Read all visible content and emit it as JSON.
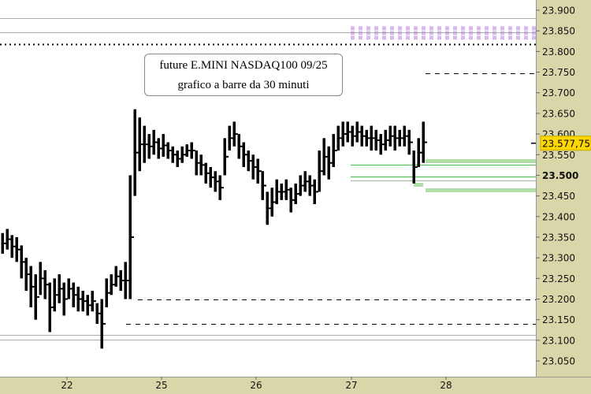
{
  "chart_data": {
    "type": "bar",
    "style": "ohlc-high-low",
    "annotation": [
      "future E.MINI NASDAQ100 09/25",
      "grafico a barre da 30 minuti"
    ],
    "ylim": [
      23030,
      23920
    ],
    "y_ticks": [
      "23.900",
      "23.850",
      "23.800",
      "23.750",
      "23.700",
      "23.650",
      "23.600",
      "23.550",
      "23.500",
      "23.450",
      "23.400",
      "23.350",
      "23.300",
      "23.250",
      "23.200",
      "23.150",
      "23.100",
      "23.050"
    ],
    "y_tick_values": [
      23900,
      23850,
      23800,
      23750,
      23700,
      23650,
      23600,
      23550,
      23500,
      23450,
      23400,
      23350,
      23300,
      23250,
      23200,
      23150,
      23100,
      23050
    ],
    "x_ticks": [
      "22",
      "25",
      "26",
      "27",
      "28"
    ],
    "last_price_label": "23.577,75",
    "last_price": 23577.75,
    "bars": [
      [
        23360,
        23310
      ],
      [
        23370,
        23320
      ],
      [
        23355,
        23300
      ],
      [
        23350,
        23290
      ],
      [
        23330,
        23250
      ],
      [
        23300,
        23220
      ],
      [
        23280,
        23180
      ],
      [
        23260,
        23150
      ],
      [
        23290,
        23210
      ],
      [
        23270,
        23200
      ],
      [
        23240,
        23120
      ],
      [
        23250,
        23170
      ],
      [
        23260,
        23190
      ],
      [
        23240,
        23160
      ],
      [
        23250,
        23200
      ],
      [
        23240,
        23180
      ],
      [
        23230,
        23170
      ],
      [
        23220,
        23170
      ],
      [
        23210,
        23160
      ],
      [
        23220,
        23170
      ],
      [
        23190,
        23140
      ],
      [
        23200,
        23080
      ],
      [
        23250,
        23180
      ],
      [
        23260,
        23210
      ],
      [
        23280,
        23230
      ],
      [
        23270,
        23220
      ],
      [
        23290,
        23200
      ],
      [
        23500,
        23200
      ],
      [
        23660,
        23450
      ],
      [
        23640,
        23510
      ],
      [
        23620,
        23530
      ],
      [
        23600,
        23540
      ],
      [
        23610,
        23550
      ],
      [
        23590,
        23540
      ],
      [
        23600,
        23545
      ],
      [
        23580,
        23540
      ],
      [
        23570,
        23530
      ],
      [
        23560,
        23520
      ],
      [
        23570,
        23530
      ],
      [
        23575,
        23545
      ],
      [
        23580,
        23540
      ],
      [
        23560,
        23500
      ],
      [
        23550,
        23500
      ],
      [
        23530,
        23480
      ],
      [
        23520,
        23470
      ],
      [
        23510,
        23460
      ],
      [
        23500,
        23440
      ],
      [
        23590,
        23500
      ],
      [
        23620,
        23560
      ],
      [
        23630,
        23570
      ],
      [
        23600,
        23540
      ],
      [
        23580,
        23520
      ],
      [
        23560,
        23510
      ],
      [
        23550,
        23490
      ],
      [
        23540,
        23480
      ],
      [
        23510,
        23440
      ],
      [
        23460,
        23380
      ],
      [
        23470,
        23400
      ],
      [
        23490,
        23430
      ],
      [
        23480,
        23440
      ],
      [
        23490,
        23440
      ],
      [
        23470,
        23410
      ],
      [
        23480,
        23430
      ],
      [
        23500,
        23450
      ],
      [
        23510,
        23460
      ],
      [
        23500,
        23450
      ],
      [
        23490,
        23430
      ],
      [
        23560,
        23460
      ],
      [
        23590,
        23500
      ],
      [
        23570,
        23490
      ],
      [
        23600,
        23520
      ],
      [
        23620,
        23560
      ],
      [
        23630,
        23570
      ],
      [
        23630,
        23580
      ],
      [
        23620,
        23570
      ],
      [
        23630,
        23580
      ],
      [
        23620,
        23570
      ],
      [
        23610,
        23570
      ],
      [
        23620,
        23560
      ],
      [
        23610,
        23560
      ],
      [
        23600,
        23550
      ],
      [
        23610,
        23560
      ],
      [
        23620,
        23570
      ],
      [
        23620,
        23560
      ],
      [
        23610,
        23570
      ],
      [
        23620,
        23570
      ],
      [
        23610,
        23550
      ],
      [
        23560,
        23480
      ],
      [
        23590,
        23520
      ],
      [
        23630,
        23530
      ]
    ],
    "levels": [
      {
        "price": 23880,
        "style": "solid",
        "color": "#aaaaaa"
      },
      {
        "price": 23846,
        "style": "solid",
        "color": "#aaaaaa"
      },
      {
        "price": 23818,
        "style": "dotted",
        "color": "#000000"
      },
      {
        "price": 23747,
        "style": "dashed",
        "color": "#000000"
      },
      {
        "price": 23535,
        "style": "band",
        "color": "#b0e0a8"
      },
      {
        "price": 23526,
        "style": "solid",
        "color": "#44bb44"
      },
      {
        "price": 23497,
        "style": "solid",
        "color": "#44bb44"
      },
      {
        "price": 23487,
        "style": "solid",
        "color": "#aaaaaa"
      },
      {
        "price": 23478,
        "style": "band",
        "color": "#b0e0a8"
      },
      {
        "price": 23465,
        "style": "band",
        "color": "#b0e0a8"
      },
      {
        "price": 23199,
        "style": "dashed",
        "color": "#000000"
      },
      {
        "price": 23140,
        "style": "dashed",
        "color": "#000000"
      },
      {
        "price": 23113,
        "style": "solid",
        "color": "#aaaaaa"
      },
      {
        "price": 23101,
        "style": "solid",
        "color": "#aaaaaa"
      }
    ],
    "zone": {
      "from": 23832,
      "to": 23862,
      "color": "#d8b8ee"
    },
    "colors": {
      "axis_bg": "#d9d7a9",
      "last_price_bg": "#ffd700",
      "bars": "#000000"
    }
  }
}
